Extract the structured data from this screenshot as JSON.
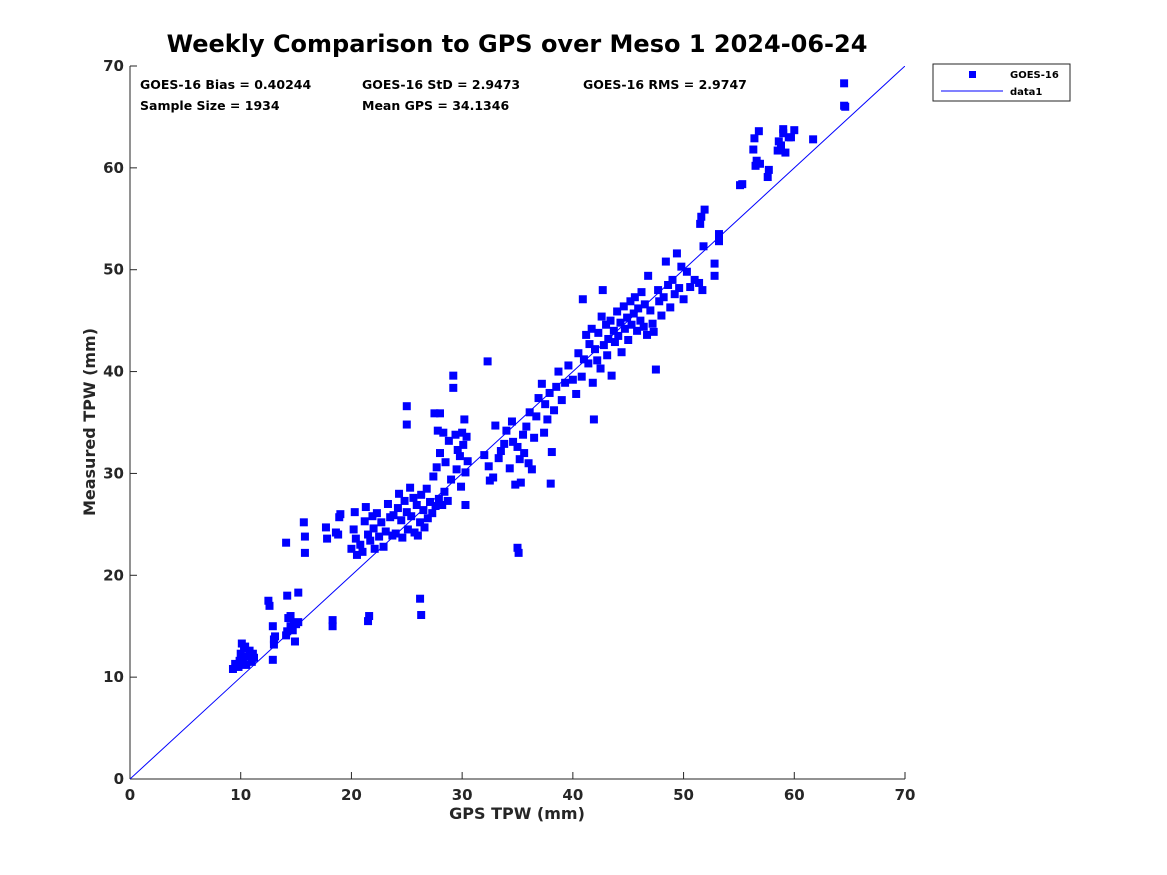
{
  "chart_data": {
    "type": "scatter",
    "title": "Weekly Comparison to GPS over Meso 1 2024-06-24",
    "xlabel": "GPS TPW (mm)",
    "ylabel": "Measured TPW (mm)",
    "xlim": [
      0,
      70
    ],
    "ylim": [
      0,
      70
    ],
    "xticks": [
      "0",
      "10",
      "20",
      "30",
      "40",
      "50",
      "60",
      "70"
    ],
    "yticks": [
      "0",
      "10",
      "20",
      "30",
      "40",
      "50",
      "60",
      "70"
    ],
    "grid": false,
    "legend_position": "outside top-right",
    "colors": {
      "series": "#0000ff",
      "axis": "#262626"
    },
    "stats": {
      "bias": "GOES-16 Bias = 0.40244",
      "std": "GOES-16 StD = 2.9473",
      "rms": "GOES-16 RMS = 2.9747",
      "sample_size": "Sample Size = 1934",
      "mean_gps": "Mean GPS = 34.1346"
    },
    "series": [
      {
        "name": "GOES-16",
        "marker": "square",
        "points": [
          [
            9.3,
            10.8
          ],
          [
            9.5,
            11.3
          ],
          [
            9.8,
            11.0
          ],
          [
            10.0,
            12.3
          ],
          [
            10.1,
            13.3
          ],
          [
            10.2,
            11.7
          ],
          [
            10.3,
            12.8
          ],
          [
            10.5,
            11.2
          ],
          [
            10.6,
            12.0
          ],
          [
            10.8,
            12.6
          ],
          [
            11.0,
            11.5
          ],
          [
            11.1,
            12.3
          ],
          [
            11.2,
            11.9
          ],
          [
            9.9,
            11.6
          ],
          [
            10.4,
            13.0
          ],
          [
            12.5,
            17.5
          ],
          [
            12.6,
            17.0
          ],
          [
            12.9,
            15.0
          ],
          [
            12.9,
            11.7
          ],
          [
            13.0,
            13.7
          ],
          [
            13.1,
            14.0
          ],
          [
            13.0,
            13.2
          ],
          [
            14.1,
            14.1
          ],
          [
            14.2,
            14.5
          ],
          [
            14.3,
            15.8
          ],
          [
            14.5,
            15.0
          ],
          [
            14.5,
            16.0
          ],
          [
            14.7,
            14.6
          ],
          [
            14.9,
            13.5
          ],
          [
            15.0,
            15.2
          ],
          [
            15.2,
            15.4
          ],
          [
            14.8,
            15.3
          ],
          [
            14.2,
            18.0
          ],
          [
            15.2,
            18.3
          ],
          [
            14.1,
            23.2
          ],
          [
            15.7,
            25.2
          ],
          [
            15.8,
            23.8
          ],
          [
            15.8,
            22.2
          ],
          [
            17.7,
            24.7
          ],
          [
            17.8,
            23.6
          ],
          [
            18.3,
            15.0
          ],
          [
            18.3,
            15.6
          ],
          [
            18.6,
            24.2
          ],
          [
            18.9,
            25.7
          ],
          [
            18.8,
            24.0
          ],
          [
            19.0,
            26.0
          ],
          [
            21.5,
            15.5
          ],
          [
            21.6,
            16.0
          ],
          [
            26.3,
            16.1
          ],
          [
            26.2,
            17.7
          ],
          [
            29.2,
            38.4
          ],
          [
            29.2,
            39.6
          ],
          [
            25.0,
            36.6
          ],
          [
            25.0,
            34.8
          ],
          [
            32.3,
            41.0
          ],
          [
            20.0,
            22.6
          ],
          [
            20.2,
            24.5
          ],
          [
            20.3,
            26.2
          ],
          [
            20.4,
            23.6
          ],
          [
            20.5,
            22.0
          ],
          [
            20.8,
            23.0
          ],
          [
            21.0,
            22.3
          ],
          [
            21.2,
            25.3
          ],
          [
            21.3,
            26.7
          ],
          [
            21.5,
            24.0
          ],
          [
            21.7,
            23.4
          ],
          [
            21.9,
            25.8
          ],
          [
            22.0,
            24.6
          ],
          [
            22.1,
            22.6
          ],
          [
            22.3,
            26.1
          ],
          [
            22.5,
            23.8
          ],
          [
            22.7,
            25.2
          ],
          [
            22.9,
            22.8
          ],
          [
            23.1,
            24.3
          ],
          [
            23.3,
            27.0
          ],
          [
            23.5,
            25.7
          ],
          [
            23.7,
            23.9
          ],
          [
            23.8,
            25.9
          ],
          [
            24.0,
            24.1
          ],
          [
            24.2,
            26.6
          ],
          [
            24.3,
            28.0
          ],
          [
            24.5,
            25.4
          ],
          [
            24.6,
            23.7
          ],
          [
            24.8,
            27.3
          ],
          [
            25.0,
            26.2
          ],
          [
            25.1,
            24.5
          ],
          [
            25.3,
            28.6
          ],
          [
            25.4,
            25.8
          ],
          [
            25.6,
            27.6
          ],
          [
            25.7,
            24.2
          ],
          [
            25.9,
            26.9
          ],
          [
            26.0,
            23.9
          ],
          [
            26.2,
            25.2
          ],
          [
            26.3,
            27.9
          ],
          [
            26.5,
            26.4
          ],
          [
            26.6,
            24.7
          ],
          [
            26.8,
            28.5
          ],
          [
            26.9,
            25.6
          ],
          [
            27.1,
            27.2
          ],
          [
            27.3,
            26.1
          ],
          [
            27.4,
            29.7
          ],
          [
            27.6,
            26.8
          ],
          [
            27.7,
            30.6
          ],
          [
            27.9,
            27.5
          ],
          [
            28.0,
            32.0
          ],
          [
            28.2,
            26.9
          ],
          [
            28.4,
            28.2
          ],
          [
            28.5,
            31.1
          ],
          [
            28.7,
            27.3
          ],
          [
            28.8,
            33.2
          ],
          [
            29.0,
            29.4
          ],
          [
            27.5,
            35.9
          ],
          [
            28.0,
            35.9
          ],
          [
            27.8,
            34.2
          ],
          [
            28.3,
            34.0
          ],
          [
            29.4,
            33.8
          ],
          [
            29.6,
            32.3
          ],
          [
            29.8,
            31.7
          ],
          [
            29.5,
            30.4
          ],
          [
            30.0,
            34.0
          ],
          [
            30.1,
            32.8
          ],
          [
            30.2,
            35.3
          ],
          [
            30.3,
            30.1
          ],
          [
            29.9,
            28.7
          ],
          [
            30.4,
            33.6
          ],
          [
            30.5,
            31.2
          ],
          [
            30.3,
            26.9
          ],
          [
            32.0,
            31.8
          ],
          [
            32.4,
            30.7
          ],
          [
            32.5,
            29.3
          ],
          [
            32.8,
            29.6
          ],
          [
            33.0,
            34.7
          ],
          [
            33.3,
            31.5
          ],
          [
            33.5,
            32.2
          ],
          [
            33.8,
            32.9
          ],
          [
            34.0,
            34.2
          ],
          [
            34.3,
            30.5
          ],
          [
            34.5,
            35.1
          ],
          [
            34.6,
            33.1
          ],
          [
            34.8,
            28.9
          ],
          [
            35.0,
            32.6
          ],
          [
            35.0,
            22.7
          ],
          [
            35.1,
            22.2
          ],
          [
            35.2,
            31.4
          ],
          [
            35.3,
            29.1
          ],
          [
            35.5,
            33.8
          ],
          [
            35.6,
            32.0
          ],
          [
            35.8,
            34.6
          ],
          [
            36.0,
            31.0
          ],
          [
            36.1,
            36.0
          ],
          [
            36.3,
            30.4
          ],
          [
            36.5,
            33.5
          ],
          [
            36.7,
            35.6
          ],
          [
            36.9,
            37.4
          ],
          [
            37.2,
            38.8
          ],
          [
            37.4,
            34.0
          ],
          [
            37.5,
            36.8
          ],
          [
            37.7,
            35.3
          ],
          [
            37.9,
            37.9
          ],
          [
            38.1,
            32.1
          ],
          [
            38.0,
            29.0
          ],
          [
            38.3,
            36.2
          ],
          [
            38.5,
            38.5
          ],
          [
            38.7,
            40.0
          ],
          [
            39.0,
            37.2
          ],
          [
            39.3,
            38.9
          ],
          [
            39.6,
            40.6
          ],
          [
            40.0,
            39.2
          ],
          [
            40.3,
            37.8
          ],
          [
            40.5,
            41.8
          ],
          [
            40.8,
            39.5
          ],
          [
            40.9,
            47.1
          ],
          [
            41.0,
            41.2
          ],
          [
            41.2,
            43.6
          ],
          [
            41.4,
            40.8
          ],
          [
            41.5,
            42.7
          ],
          [
            41.7,
            44.2
          ],
          [
            41.8,
            38.9
          ],
          [
            41.9,
            35.3
          ],
          [
            42.0,
            42.2
          ],
          [
            42.2,
            41.1
          ],
          [
            42.3,
            43.8
          ],
          [
            42.5,
            40.3
          ],
          [
            42.6,
            45.4
          ],
          [
            42.7,
            48.0
          ],
          [
            42.8,
            42.6
          ],
          [
            43.0,
            44.6
          ],
          [
            43.1,
            41.6
          ],
          [
            43.2,
            43.2
          ],
          [
            43.4,
            45.0
          ],
          [
            43.5,
            39.6
          ],
          [
            43.7,
            44.0
          ],
          [
            43.8,
            42.9
          ],
          [
            44.0,
            45.9
          ],
          [
            44.1,
            43.5
          ],
          [
            44.3,
            44.8
          ],
          [
            44.4,
            41.9
          ],
          [
            44.6,
            46.4
          ],
          [
            44.7,
            44.2
          ],
          [
            44.9,
            45.3
          ],
          [
            45.0,
            43.1
          ],
          [
            45.2,
            46.9
          ],
          [
            45.3,
            44.6
          ],
          [
            45.5,
            45.7
          ],
          [
            45.6,
            47.3
          ],
          [
            45.8,
            44.0
          ],
          [
            45.9,
            46.2
          ],
          [
            46.1,
            45.0
          ],
          [
            46.2,
            47.8
          ],
          [
            46.4,
            44.4
          ],
          [
            46.5,
            46.6
          ],
          [
            46.7,
            43.6
          ],
          [
            46.8,
            49.4
          ],
          [
            47.0,
            46.0
          ],
          [
            47.2,
            44.7
          ],
          [
            47.3,
            43.9
          ],
          [
            47.5,
            40.2
          ],
          [
            47.7,
            48.0
          ],
          [
            47.8,
            46.9
          ],
          [
            48.0,
            45.5
          ],
          [
            48.2,
            47.3
          ],
          [
            48.4,
            50.8
          ],
          [
            48.6,
            48.5
          ],
          [
            48.8,
            46.3
          ],
          [
            49.0,
            49.0
          ],
          [
            49.2,
            47.6
          ],
          [
            49.4,
            51.6
          ],
          [
            49.6,
            48.2
          ],
          [
            49.8,
            50.3
          ],
          [
            50.0,
            47.1
          ],
          [
            50.3,
            49.8
          ],
          [
            50.6,
            48.3
          ],
          [
            51.0,
            49.0
          ],
          [
            51.4,
            48.7
          ],
          [
            51.7,
            48.0
          ],
          [
            51.8,
            52.3
          ],
          [
            51.5,
            54.5
          ],
          [
            51.6,
            55.2
          ],
          [
            51.9,
            55.9
          ],
          [
            52.8,
            49.4
          ],
          [
            52.8,
            50.6
          ],
          [
            53.2,
            52.8
          ],
          [
            53.2,
            53.5
          ],
          [
            55.1,
            58.3
          ],
          [
            55.3,
            58.4
          ],
          [
            56.3,
            61.8
          ],
          [
            56.4,
            62.9
          ],
          [
            56.5,
            60.2
          ],
          [
            56.6,
            60.7
          ],
          [
            56.8,
            63.6
          ],
          [
            56.9,
            60.4
          ],
          [
            57.6,
            59.1
          ],
          [
            57.7,
            59.8
          ],
          [
            58.5,
            61.7
          ],
          [
            58.6,
            62.6
          ],
          [
            59.0,
            63.4
          ],
          [
            59.2,
            61.5
          ],
          [
            59.5,
            63.0
          ],
          [
            58.8,
            62.2
          ],
          [
            59.0,
            63.8
          ],
          [
            59.7,
            63.0
          ],
          [
            60.0,
            63.7
          ],
          [
            61.7,
            62.8
          ],
          [
            64.5,
            68.3
          ],
          [
            64.6,
            66.0
          ],
          [
            64.5,
            66.1
          ]
        ]
      },
      {
        "name": "data1",
        "line": [
          [
            0,
            0
          ],
          [
            70,
            70
          ]
        ]
      }
    ]
  }
}
